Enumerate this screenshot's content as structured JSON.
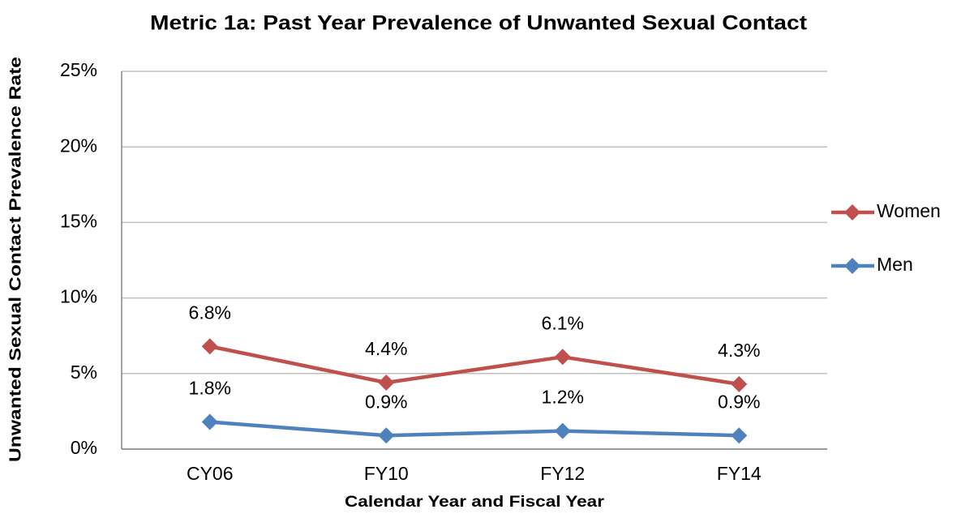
{
  "chart_data": {
    "type": "line",
    "title": "Metric 1a: Past Year Prevalence of Unwanted Sexual Contact",
    "x_label": "Calendar Year and Fiscal Year",
    "y_label": "Unwanted Sexual Contact Prevalence Rate",
    "categories": [
      "CY06",
      "FY10",
      "FY12",
      "FY14"
    ],
    "series": [
      {
        "name": "Women",
        "color": "#c0504d",
        "values": [
          6.8,
          4.4,
          6.1,
          4.3
        ],
        "value_labels": [
          "6.8%",
          "4.4%",
          "6.1%",
          "4.3%"
        ]
      },
      {
        "name": "Men",
        "color": "#4f81bd",
        "values": [
          1.8,
          0.9,
          1.2,
          0.9
        ],
        "value_labels": [
          "1.8%",
          "0.9%",
          "1.2%",
          "0.9%"
        ]
      }
    ],
    "ylim": [
      0,
      25
    ],
    "yticks": [
      {
        "value": 0,
        "label": "0%"
      },
      {
        "value": 5,
        "label": "5%"
      },
      {
        "value": 10,
        "label": "10%"
      },
      {
        "value": 15,
        "label": "15%"
      },
      {
        "value": 20,
        "label": "20%"
      },
      {
        "value": 25,
        "label": "25%"
      }
    ],
    "grid": true,
    "legend": "right"
  }
}
